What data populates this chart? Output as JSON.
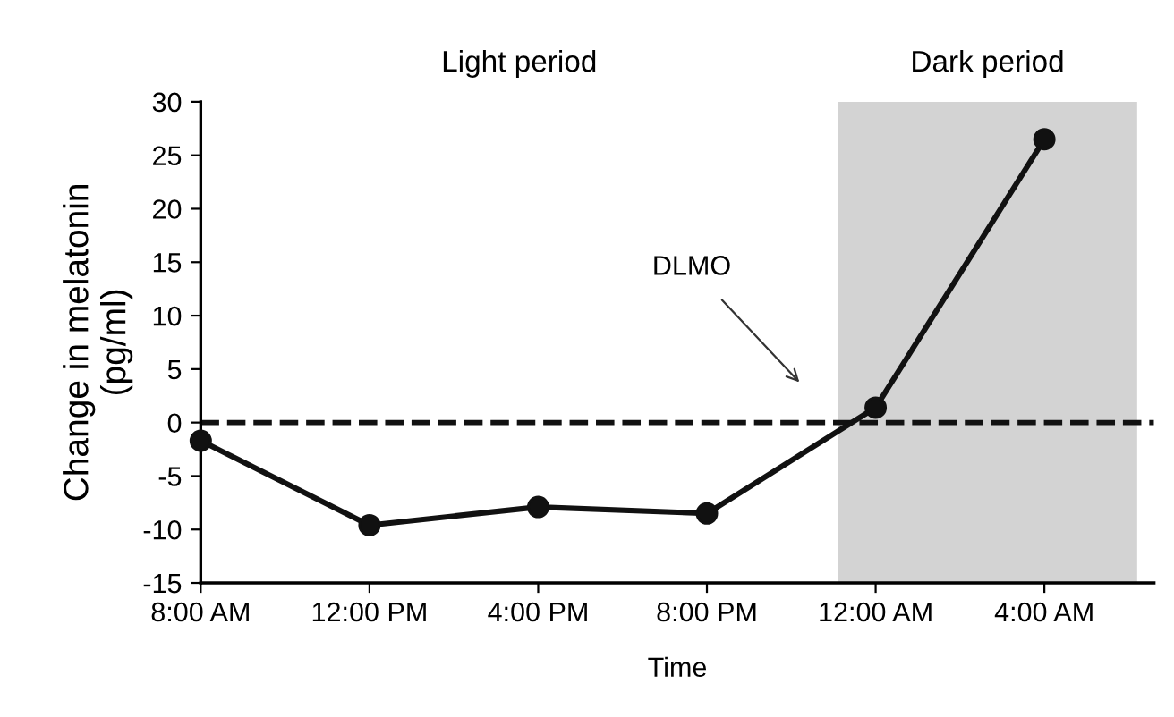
{
  "chart_data": {
    "type": "line",
    "xlabel": "Time",
    "ylabel": "Change in melatonin\n(pg/ml)",
    "x": [
      "2000-01-01T08:00",
      "2000-01-01T12:00",
      "2000-01-01T16:00",
      "2000-01-01T20:00",
      "2000-01-02T00:00",
      "2000-01-02T04:00"
    ],
    "series": [
      {
        "color": "#111111",
        "values": [
          -1.7,
          -9.6,
          -7.9,
          -8.5,
          1.4,
          26.5
        ]
      }
    ],
    "xlim": [
      "2000-01-01T08:00",
      "2000-01-02T06:36"
    ],
    "ylim": [
      -15,
      30
    ],
    "xticks": [
      {
        "value": "2000-01-01T08:00",
        "label": "8:00 AM"
      },
      {
        "value": "2000-01-01T12:00",
        "label": "12:00 PM"
      },
      {
        "value": "2000-01-01T16:00",
        "label": "4:00 PM"
      },
      {
        "value": "2000-01-01T20:00",
        "label": "8:00 PM"
      },
      {
        "value": "2000-01-02T00:00",
        "label": "12:00 AM"
      },
      {
        "value": "2000-01-02T04:00",
        "label": "4:00 AM"
      }
    ],
    "yticks": [
      -15,
      -10,
      -5,
      0,
      5,
      10,
      15,
      20,
      25,
      30
    ],
    "marker": "circle",
    "line_style": "solid",
    "grid": false,
    "legend": false,
    "ref_lines": [
      {
        "axis": "y",
        "value": 0,
        "color": "#111111",
        "line_style": "dashed"
      }
    ],
    "bands": [
      {
        "axis": "x",
        "from": "2000-01-01T23:06",
        "to": "2000-01-02T06:12",
        "label": "Dark period",
        "color": "#d3d3d3"
      }
    ],
    "annotations": [
      "Light period",
      "DLMO"
    ]
  }
}
